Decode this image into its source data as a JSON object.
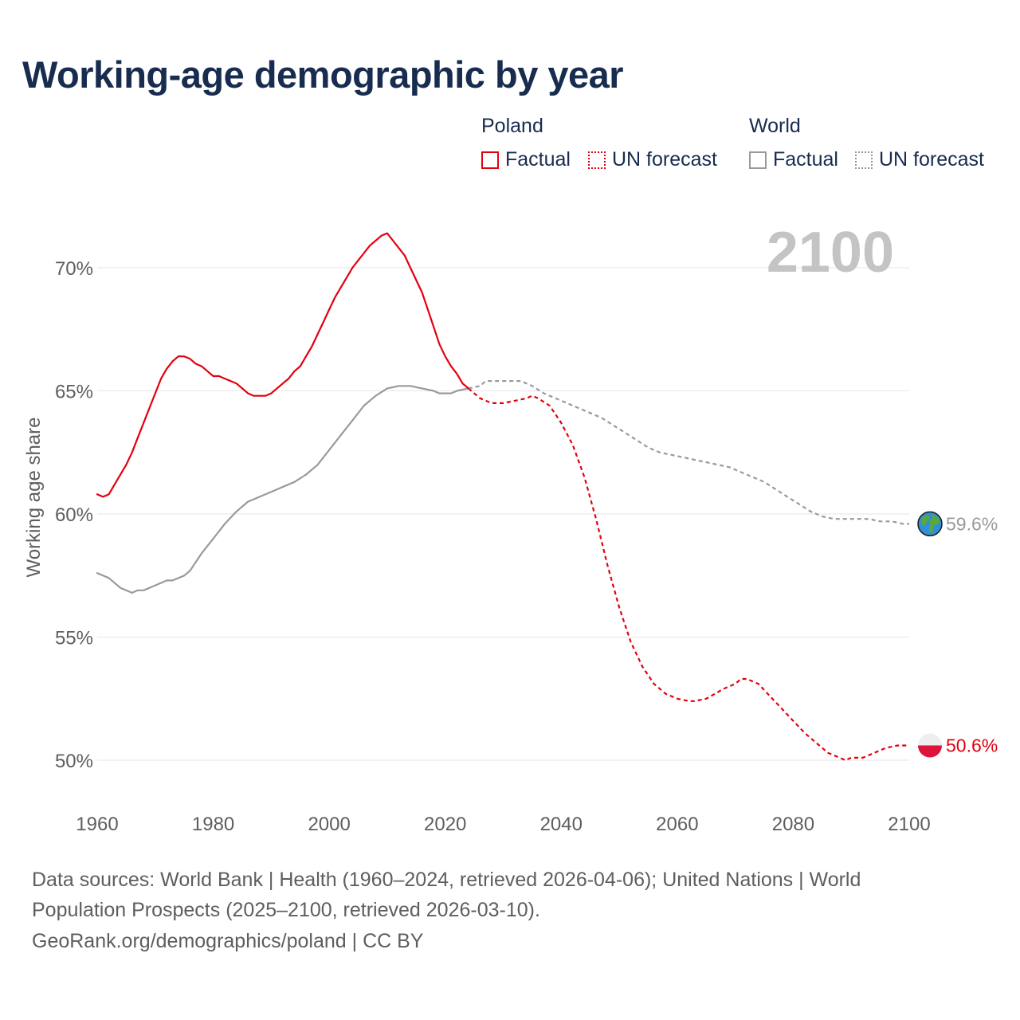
{
  "title": "Working-age demographic by year",
  "legend": {
    "groups": [
      {
        "name": "Poland",
        "factual_label": "Factual",
        "forecast_label": "UN forecast"
      },
      {
        "name": "World",
        "factual_label": "Factual",
        "forecast_label": "UN forecast"
      }
    ]
  },
  "footer": {
    "line1": "Data sources: World Bank | Health (1960–2024, retrieved 2026-04-06); United Nations | World",
    "line2": "Population Prospects (2025–2100, retrieved 2026-03-10).",
    "line3": "GeoRank.org/demographics/poland | CC BY"
  },
  "colors": {
    "poland": "#e3000f",
    "world": "#9a9a9a",
    "year_label": "#c4c4c4",
    "grid": "#e6e6e6"
  },
  "chart_data": {
    "type": "line",
    "title": "Working-age demographic by year",
    "xlabel": "",
    "ylabel": "Working age share",
    "xlim": [
      1960,
      2100
    ],
    "ylim": [
      48.5,
      73
    ],
    "x_ticks": [
      1960,
      1980,
      2000,
      2020,
      2040,
      2060,
      2080,
      2100
    ],
    "y_ticks": [
      50,
      55,
      60,
      65,
      70
    ],
    "y_tick_labels": [
      "50%",
      "55%",
      "60%",
      "65%",
      "70%"
    ],
    "current_year_label": "2100",
    "end_labels": {
      "poland": "50.6%",
      "world": "59.6%"
    },
    "end_icons": {
      "poland": "poland-flag-icon",
      "world": "globe-icon"
    },
    "series": [
      {
        "name": "Poland",
        "segment": "Factual",
        "style": "solid",
        "color": "#e3000f",
        "x": [
          1960,
          1961,
          1962,
          1963,
          1964,
          1965,
          1966,
          1967,
          1968,
          1969,
          1970,
          1971,
          1972,
          1973,
          1974,
          1975,
          1976,
          1977,
          1978,
          1979,
          1980,
          1981,
          1982,
          1983,
          1984,
          1985,
          1986,
          1987,
          1988,
          1989,
          1990,
          1991,
          1992,
          1993,
          1994,
          1995,
          1996,
          1997,
          1998,
          1999,
          2000,
          2001,
          2002,
          2003,
          2004,
          2005,
          2006,
          2007,
          2008,
          2009,
          2010,
          2011,
          2012,
          2013,
          2014,
          2015,
          2016,
          2017,
          2018,
          2019,
          2020,
          2021,
          2022,
          2023,
          2024
        ],
        "y": [
          60.8,
          60.7,
          60.8,
          61.2,
          61.6,
          62.0,
          62.5,
          63.1,
          63.7,
          64.3,
          64.9,
          65.5,
          65.9,
          66.2,
          66.4,
          66.4,
          66.3,
          66.1,
          66.0,
          65.8,
          65.6,
          65.6,
          65.5,
          65.4,
          65.3,
          65.1,
          64.9,
          64.8,
          64.8,
          64.8,
          64.9,
          65.1,
          65.3,
          65.5,
          65.8,
          66.0,
          66.4,
          66.8,
          67.3,
          67.8,
          68.3,
          68.8,
          69.2,
          69.6,
          70.0,
          70.3,
          70.6,
          70.9,
          71.1,
          71.3,
          71.4,
          71.1,
          70.8,
          70.5,
          70.0,
          69.5,
          69.0,
          68.3,
          67.6,
          66.9,
          66.4,
          66.0,
          65.7,
          65.3,
          65.1
        ]
      },
      {
        "name": "Poland",
        "segment": "UN forecast",
        "style": "dashed",
        "color": "#e3000f",
        "x": [
          2024,
          2026,
          2028,
          2030,
          2032,
          2034,
          2035,
          2036,
          2038,
          2040,
          2042,
          2044,
          2046,
          2048,
          2050,
          2052,
          2054,
          2056,
          2058,
          2060,
          2062,
          2063,
          2065,
          2068,
          2070,
          2071,
          2072,
          2074,
          2076,
          2078,
          2080,
          2082,
          2084,
          2086,
          2088,
          2089,
          2090,
          2092,
          2094,
          2096,
          2098,
          2100
        ],
        "y": [
          65.1,
          64.7,
          64.5,
          64.5,
          64.6,
          64.7,
          64.8,
          64.7,
          64.4,
          63.7,
          62.8,
          61.5,
          59.8,
          57.9,
          56.2,
          54.8,
          53.8,
          53.1,
          52.7,
          52.5,
          52.4,
          52.4,
          52.5,
          52.9,
          53.1,
          53.3,
          53.3,
          53.1,
          52.6,
          52.1,
          51.6,
          51.1,
          50.7,
          50.3,
          50.1,
          50.0,
          50.1,
          50.1,
          50.3,
          50.5,
          50.6,
          50.6
        ]
      },
      {
        "name": "World",
        "segment": "Factual",
        "style": "solid",
        "color": "#9a9a9a",
        "x": [
          1960,
          1962,
          1964,
          1966,
          1967,
          1968,
          1970,
          1972,
          1973,
          1975,
          1976,
          1978,
          1980,
          1982,
          1984,
          1986,
          1987,
          1988,
          1990,
          1992,
          1994,
          1996,
          1998,
          2000,
          2002,
          2004,
          2006,
          2008,
          2010,
          2012,
          2014,
          2016,
          2018,
          2019,
          2020,
          2021,
          2022,
          2024
        ],
        "y": [
          57.6,
          57.4,
          57.0,
          56.8,
          56.9,
          56.9,
          57.1,
          57.3,
          57.3,
          57.5,
          57.7,
          58.4,
          59.0,
          59.6,
          60.1,
          60.5,
          60.6,
          60.7,
          60.9,
          61.1,
          61.3,
          61.6,
          62.0,
          62.6,
          63.2,
          63.8,
          64.4,
          64.8,
          65.1,
          65.2,
          65.2,
          65.1,
          65.0,
          64.9,
          64.9,
          64.9,
          65.0,
          65.1
        ]
      },
      {
        "name": "World",
        "segment": "UN forecast",
        "style": "dashed",
        "color": "#9a9a9a",
        "x": [
          2024,
          2026,
          2027,
          2029,
          2031,
          2033,
          2035,
          2037,
          2039,
          2041,
          2043,
          2045,
          2047,
          2049,
          2051,
          2053,
          2055,
          2057,
          2059,
          2061,
          2063,
          2065,
          2067,
          2069,
          2071,
          2073,
          2075,
          2077,
          2079,
          2081,
          2083,
          2085,
          2087,
          2089,
          2091,
          2093,
          2095,
          2097,
          2099,
          2100
        ],
        "y": [
          65.1,
          65.2,
          65.4,
          65.4,
          65.4,
          65.4,
          65.2,
          64.9,
          64.7,
          64.5,
          64.3,
          64.1,
          63.9,
          63.6,
          63.3,
          63.0,
          62.7,
          62.5,
          62.4,
          62.3,
          62.2,
          62.1,
          62.0,
          61.9,
          61.7,
          61.5,
          61.3,
          61.0,
          60.7,
          60.4,
          60.1,
          59.9,
          59.8,
          59.8,
          59.8,
          59.8,
          59.7,
          59.7,
          59.6,
          59.6
        ]
      }
    ]
  }
}
